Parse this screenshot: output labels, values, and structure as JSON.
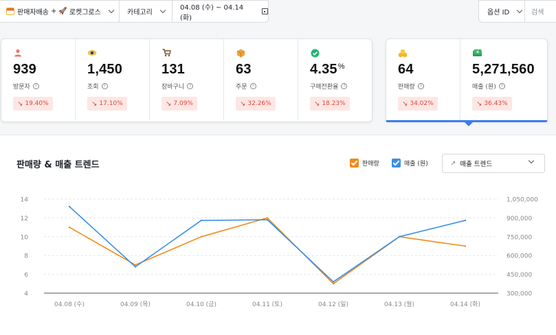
{
  "filters": {
    "channel": {
      "label_a": "판매자배송",
      "plus": "+",
      "label_b": "로켓그로스"
    },
    "category": {
      "label": "카테고리"
    },
    "date_range": {
      "label": "04.08 (수) ~ 04.14 (화)"
    },
    "option": {
      "label": "옵션 ID"
    },
    "search": {
      "label": "검색"
    }
  },
  "kpis": [
    {
      "icon": "visitor-icon",
      "value": "939",
      "label": "방문자",
      "change": "19.40%"
    },
    {
      "icon": "eye-icon",
      "value": "1,450",
      "label": "조회",
      "change": "17.10%"
    },
    {
      "icon": "cart-icon",
      "value": "131",
      "label": "장바구니",
      "change": "7.09%"
    },
    {
      "icon": "box-icon",
      "value": "63",
      "label": "주문",
      "change": "32.26%"
    },
    {
      "icon": "check-circle-icon",
      "value": "4.35",
      "unit": "%",
      "label": "구매전환율",
      "change": "18.23%"
    },
    {
      "icon": "coins-icon",
      "value": "64",
      "label": "판매량",
      "change": "34.02%"
    },
    {
      "icon": "money-icon",
      "value": "5,271,560",
      "label": "매출 (원)",
      "change": "36.43%"
    }
  ],
  "info_glyph": "?",
  "colors": {
    "accent_blue": "#3b7cf0",
    "sales_orange": "#f28a18",
    "revenue_blue": "#3b8fe8",
    "decline_red": "#e0463b",
    "decline_bg": "#fde7e4"
  },
  "chart_section": {
    "title": "판매량 & 매출 트렌드",
    "legend_sales": "판매량",
    "legend_revenue": "매출 (원)",
    "trend_select": "매출 트렌드"
  },
  "chart_data": {
    "type": "line",
    "categories": [
      "04.08 (수)",
      "04.09 (목)",
      "04.10 (금)",
      "04.11 (토)",
      "04.12 (일)",
      "04.13 (월)",
      "04.14 (화)"
    ],
    "series": [
      {
        "name": "판매량",
        "axis": "left",
        "color": "#f28a18",
        "values": [
          11,
          7,
          10,
          12,
          5,
          10,
          9
        ]
      },
      {
        "name": "매출 (원)",
        "axis": "right",
        "color": "#3b8fe8",
        "values": [
          990000,
          510000,
          880000,
          885000,
          390000,
          750000,
          880000
        ]
      }
    ],
    "y_left": {
      "ticks": [
        "4",
        "6",
        "8",
        "10",
        "12",
        "14"
      ],
      "min": 4,
      "max": 14
    },
    "y_right": {
      "ticks": [
        "300,000",
        "450,000",
        "600,000",
        "750,000",
        "900,000",
        "1,050,000"
      ],
      "min": 300000,
      "max": 1050000
    },
    "grid": "horizontal-dashed"
  }
}
